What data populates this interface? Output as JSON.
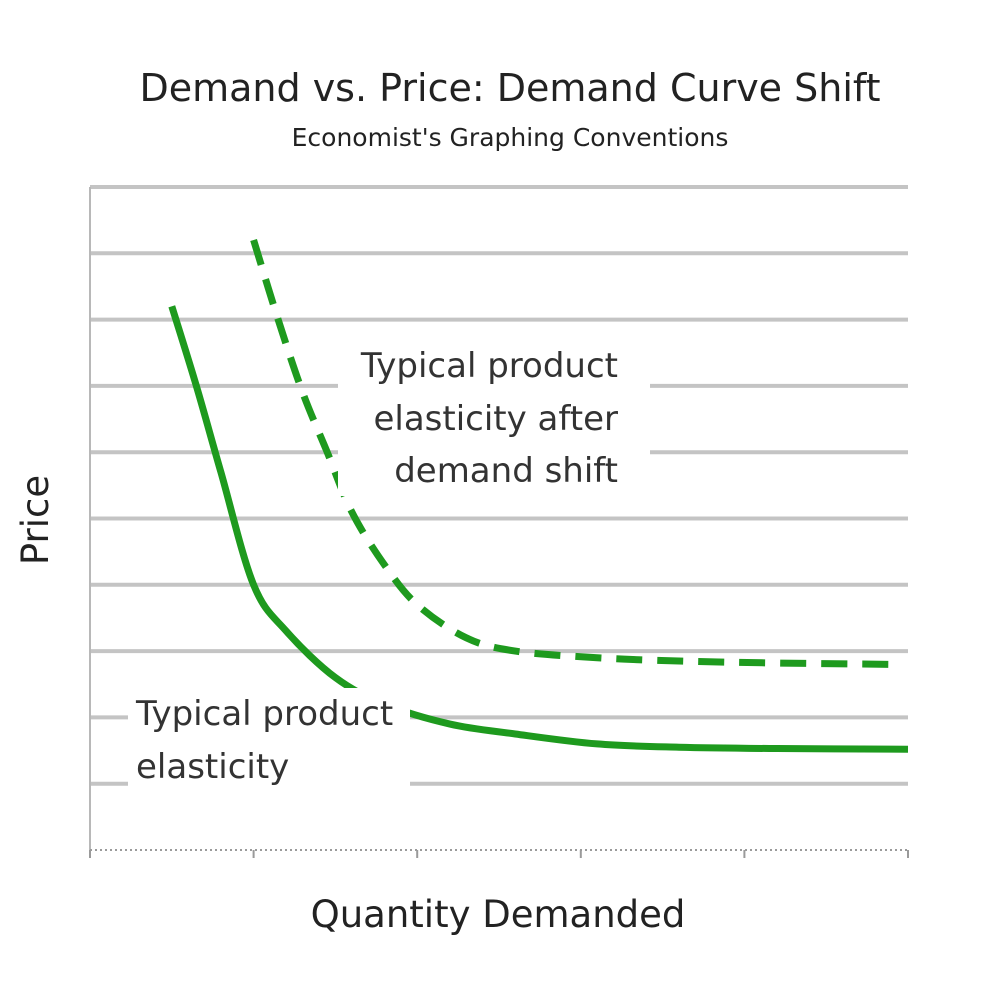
{
  "chart_data": {
    "type": "line",
    "title": "Demand vs. Price: Demand Curve Shift",
    "subtitle": "Economist's Graphing Conventions",
    "xlabel": "Quantity Demanded",
    "ylabel": "Price",
    "xlim": [
      0,
      5
    ],
    "ylim": [
      0,
      10
    ],
    "grid": true,
    "x_tick_count": 5,
    "gridline_count": 10,
    "series": [
      {
        "style": "solid",
        "color": "#1e9a1e",
        "x": [
          0.5,
          0.65,
          0.8,
          1.0,
          1.2,
          1.5,
          1.8,
          2.2,
          2.6,
          3.1,
          3.6,
          4.2,
          5.0
        ],
        "y": [
          8.2,
          7.0,
          5.7,
          4.0,
          3.3,
          2.6,
          2.2,
          1.9,
          1.75,
          1.6,
          1.55,
          1.53,
          1.52
        ]
      },
      {
        "style": "dashed",
        "color": "#1e9a1e",
        "x": [
          1.0,
          1.15,
          1.3,
          1.45,
          1.6,
          1.8,
          2.0,
          2.3,
          2.6,
          3.1,
          3.6,
          4.2,
          4.9
        ],
        "y": [
          9.2,
          8.0,
          6.9,
          6.0,
          5.1,
          4.3,
          3.7,
          3.2,
          3.0,
          2.9,
          2.85,
          2.82,
          2.8
        ]
      }
    ],
    "annotations": [
      {
        "lines": [
          "Typical product",
          "elasticity after",
          "demand shift"
        ]
      },
      {
        "lines": [
          "Typical product",
          "elasticity"
        ]
      }
    ]
  }
}
